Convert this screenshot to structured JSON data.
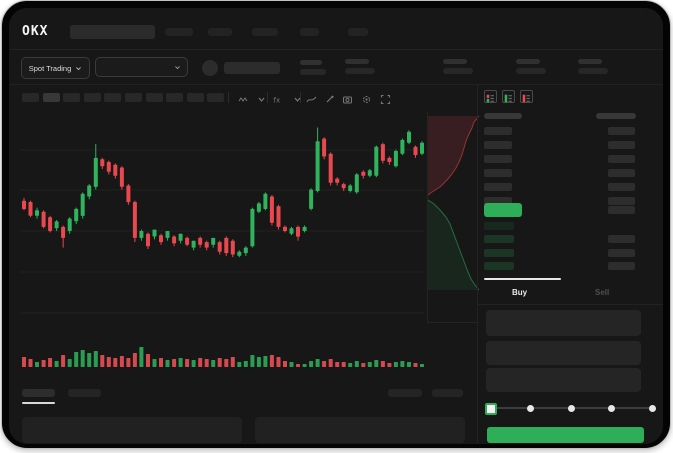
{
  "header": {
    "logo_text": "OKX",
    "nav_item_count": 5
  },
  "market_bar": {
    "pair_selector_label": "Spot Trading",
    "stat_group_count": 4
  },
  "toolbar": {
    "timeframe_slot_count": 10,
    "icons": [
      "candle-style-icon",
      "chevron-down-icon",
      "indicators-fx-icon",
      "chevron-down-icon",
      "line-chart-icon",
      "pencil-draw-icon",
      "camera-snapshot-icon",
      "settings-gear-icon",
      "fullscreen-icon"
    ]
  },
  "chart_data": {
    "type": "candlestick",
    "title": "",
    "xlabel": "",
    "ylabel": "",
    "axis_labels_visible": false,
    "grid": "horizontal-faint",
    "price_scale": "relative 0-100 (no numeric labels rendered in UI)",
    "colors": {
      "up": "#2fb35d",
      "down": "#e9484f"
    },
    "candles_ohlcv": [
      [
        43,
        45,
        36,
        37,
        10
      ],
      [
        42,
        43,
        31,
        32,
        8
      ],
      [
        32,
        38,
        30,
        36,
        5
      ],
      [
        35,
        36,
        23,
        24,
        7
      ],
      [
        31,
        32,
        20,
        21,
        9
      ],
      [
        23,
        29,
        21,
        28,
        6
      ],
      [
        24,
        25,
        9,
        16,
        12
      ],
      [
        21,
        31,
        19,
        30,
        8
      ],
      [
        28,
        38,
        26,
        37,
        15
      ],
      [
        32,
        49,
        30,
        48,
        17
      ],
      [
        46,
        55,
        44,
        54,
        14
      ],
      [
        53,
        84,
        51,
        74,
        16
      ],
      [
        73,
        74,
        66,
        68,
        12
      ],
      [
        71,
        72,
        62,
        64,
        10
      ],
      [
        69,
        70,
        59,
        61,
        9
      ],
      [
        67,
        68,
        51,
        53,
        11
      ],
      [
        54,
        55,
        40,
        42,
        9
      ],
      [
        42,
        43,
        13,
        16,
        14
      ],
      [
        16,
        22,
        14,
        21,
        20
      ],
      [
        19,
        20,
        8,
        10,
        13
      ],
      [
        17,
        22,
        15,
        22,
        8
      ],
      [
        18,
        19,
        11,
        13,
        9
      ],
      [
        16,
        21,
        14,
        21,
        7
      ],
      [
        17,
        18,
        10,
        12,
        8
      ],
      [
        14,
        19,
        12,
        19,
        9
      ],
      [
        16,
        17,
        10,
        11,
        8
      ],
      [
        9,
        14,
        7,
        14,
        7
      ],
      [
        16,
        17,
        9,
        11,
        9
      ],
      [
        13,
        14,
        7,
        9,
        8
      ],
      [
        11,
        16,
        9,
        16,
        7
      ],
      [
        13,
        14,
        4,
        6,
        9
      ],
      [
        16,
        17,
        3,
        5,
        8
      ],
      [
        14,
        15,
        2,
        4,
        10
      ],
      [
        3,
        7,
        2,
        6,
        5
      ],
      [
        5,
        10,
        3,
        9,
        6
      ],
      [
        10,
        38,
        9,
        37,
        12
      ],
      [
        35,
        42,
        34,
        41,
        10
      ],
      [
        37,
        49,
        36,
        48,
        11
      ],
      [
        46,
        47,
        25,
        27,
        12
      ],
      [
        39,
        40,
        22,
        24,
        10
      ],
      [
        24,
        25,
        20,
        21,
        6
      ],
      [
        19,
        24,
        18,
        23,
        5
      ],
      [
        24,
        25,
        14,
        17,
        3
      ],
      [
        21,
        25,
        20,
        24,
        3
      ],
      [
        37,
        52,
        36,
        51,
        6
      ],
      [
        50,
        96,
        49,
        86,
        8
      ],
      [
        88,
        89,
        73,
        75,
        6
      ],
      [
        77,
        78,
        54,
        56,
        8
      ],
      [
        59,
        60,
        54,
        56,
        5
      ],
      [
        55,
        56,
        50,
        52,
        5
      ],
      [
        50,
        55,
        49,
        54,
        4
      ],
      [
        49,
        63,
        48,
        62,
        6
      ],
      [
        64,
        65,
        59,
        61,
        4
      ],
      [
        61,
        66,
        60,
        65,
        5
      ],
      [
        61,
        83,
        60,
        82,
        7
      ],
      [
        84,
        85,
        70,
        72,
        6
      ],
      [
        74,
        75,
        69,
        71,
        4
      ],
      [
        68,
        80,
        67,
        79,
        5
      ],
      [
        77,
        88,
        76,
        87,
        6
      ],
      [
        85,
        94,
        84,
        93,
        5
      ],
      [
        82,
        83,
        74,
        76,
        4
      ],
      [
        77,
        86,
        76,
        85,
        3
      ]
    ],
    "volume_pane": "bottom, bar color follows candle direction",
    "depth_sidebar": {
      "description": "vertical order-depth silhouette right of candles",
      "ask_steps": [
        [
          51,
          4
        ],
        [
          46,
          10
        ],
        [
          44,
          16
        ],
        [
          41,
          22
        ],
        [
          38,
          29
        ],
        [
          36,
          36
        ],
        [
          34,
          43
        ],
        [
          31,
          50
        ],
        [
          28,
          56
        ],
        [
          24,
          62
        ],
        [
          19,
          68
        ],
        [
          12,
          75
        ],
        [
          4,
          80
        ],
        [
          0,
          83
        ]
      ],
      "bid_steps": [
        [
          0,
          88
        ],
        [
          6,
          92
        ],
        [
          12,
          98
        ],
        [
          18,
          105
        ],
        [
          22,
          112
        ],
        [
          25,
          120
        ],
        [
          28,
          128
        ],
        [
          31,
          136
        ],
        [
          34,
          144
        ],
        [
          37,
          152
        ],
        [
          40,
          160
        ],
        [
          43,
          167
        ],
        [
          47,
          173
        ],
        [
          51,
          178
        ]
      ]
    }
  },
  "order_book": {
    "view_icons": [
      "book-both-icon",
      "book-bids-icon",
      "book-asks-icon"
    ],
    "ask_row_count": 6,
    "bid_row_count": 4,
    "last_price_highlight_color": "#2eae58"
  },
  "trade_panel": {
    "tabs": [
      {
        "label": "Buy",
        "active": true
      },
      {
        "label": "Sell",
        "active": false
      }
    ],
    "input_count": 3,
    "slider": {
      "stop_count": 5,
      "selected_index": 0,
      "handle_color": "#2eae58"
    },
    "submit_button_color": "#2eae58"
  },
  "bottom_bar": {
    "left_tab_count": 2,
    "active_tab_index": 0,
    "right_link_count": 2,
    "panel_count": 2
  },
  "colors": {
    "up_green": "#2fb35d",
    "down_red": "#e9484f",
    "accent_green": "#2eae58",
    "bg": "#171717",
    "skeleton": "#282828"
  }
}
